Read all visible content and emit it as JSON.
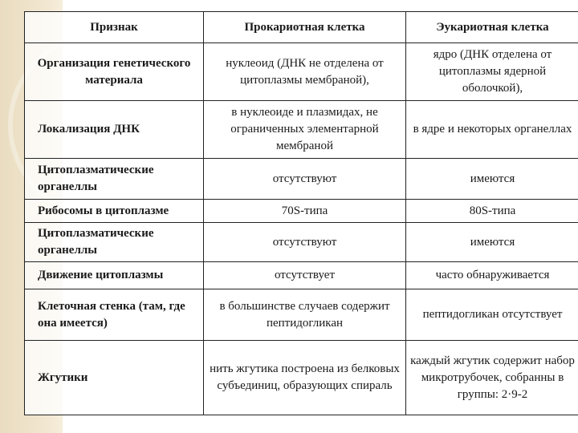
{
  "header": [
    "Признак",
    "Прокариотная клетка",
    "Эукариотная клетка"
  ],
  "rows": [
    [
      "Организация генетического материала",
      "нуклеоид (ДНК не отделена от цитоплазмы мембраной),",
      "ядро (ДНК отделена от цитоплазмы ядерной оболочкой),"
    ],
    [
      "Локализация ДНК",
      "в нуклеоиде и плазмидах, не ограниченных элементарной мембраной",
      "в ядре и некоторых органеллах"
    ],
    [
      "Цитоплазматические органеллы",
      "отсутствуют",
      "имеются"
    ],
    [
      "Рибосомы в цитоплазме",
      "70S-типа",
      "80S-типа"
    ],
    [
      "Цитоплазматические органеллы",
      "отсутствуют",
      "имеются"
    ],
    [
      "Движение цитоплазмы",
      "отсутствует",
      "часто обнаруживается"
    ],
    [
      "Клеточная стенка (там, где она имеется)",
      "в большинстве случаев содержит пептидогликан",
      "пептидогликан отсутствует"
    ],
    [
      "Жгутики",
      "нить жгутика построена из белковых субъединиц, образующих спираль",
      "каждый жгутик содержит набор микротрубочек, собранны в группы: 2·9-2"
    ]
  ]
}
